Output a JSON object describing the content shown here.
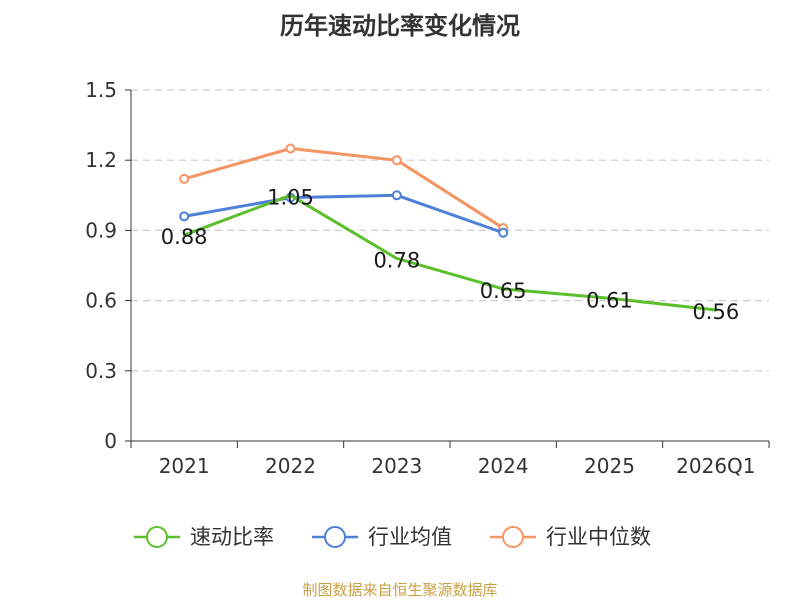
{
  "chart_data": {
    "type": "line",
    "title": "历年速动比率变化情况",
    "categories": [
      "2021",
      "2022",
      "2023",
      "2024",
      "2025",
      "2026Q1"
    ],
    "ylim": [
      0,
      1.5
    ],
    "yticks": [
      "0",
      "0.3",
      "0.6",
      "0.9",
      "1.2",
      "1.5"
    ],
    "ytick_values": [
      0,
      0.3,
      0.6,
      0.9,
      1.2,
      1.5
    ],
    "grid": true,
    "legend_position": "bottom",
    "series": [
      {
        "name": "速动比率",
        "color": "#5cc02c",
        "values": [
          0.88,
          1.05,
          0.78,
          0.65,
          0.61,
          0.56
        ],
        "labels": [
          "0.88",
          "1.05",
          "0.78",
          "0.65",
          "0.61",
          "0.56"
        ],
        "markers": false
      },
      {
        "name": "行业均值",
        "color": "#4e7fd9",
        "values": [
          0.96,
          1.04,
          1.05,
          0.89,
          null,
          null
        ],
        "markers": true
      },
      {
        "name": "行业中位数",
        "color": "#f59563",
        "values": [
          1.12,
          1.25,
          1.2,
          0.91,
          null,
          null
        ],
        "markers": true
      }
    ]
  },
  "source": "制图数据来自恒生聚源数据库"
}
